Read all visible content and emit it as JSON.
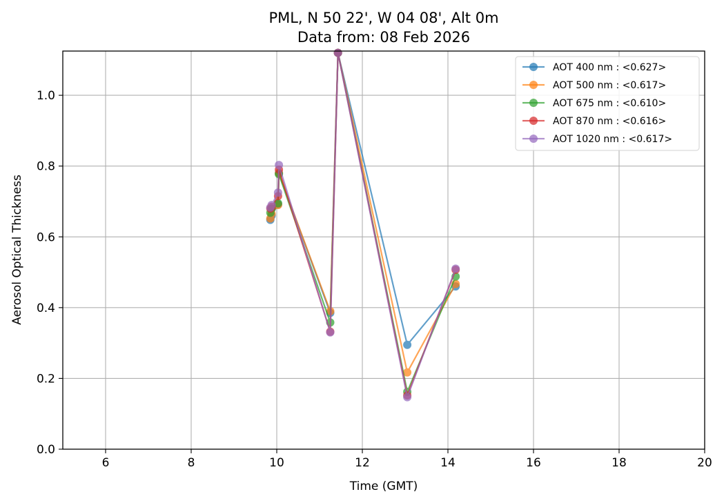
{
  "chart_data": {
    "type": "line",
    "title": "PML, N 50 22', W 04 08', Alt 0m",
    "subtitle": "Data from: 08 Feb 2026",
    "xlabel": "Time (GMT)",
    "ylabel": "Aerosol Optical Thickness",
    "xlim": [
      5,
      20
    ],
    "ylim": [
      0,
      1.125
    ],
    "x_ticks": [
      6,
      8,
      10,
      12,
      14,
      16,
      18,
      20
    ],
    "y_ticks": [
      0.0,
      0.2,
      0.4,
      0.6,
      0.8,
      1.0
    ],
    "x_tick_labels": [
      "6",
      "8",
      "10",
      "12",
      "14",
      "16",
      "18",
      "20"
    ],
    "y_tick_labels": [
      "0.0",
      "0.2",
      "0.4",
      "0.6",
      "0.8",
      "1.0"
    ],
    "grid": true,
    "legend_position": "top-right",
    "series": [
      {
        "name": "AOT 400 nm : <0.627>",
        "color": "#1f77b4",
        "x": [
          9.85,
          9.88,
          10.03,
          10.05,
          11.25,
          11.43,
          13.05,
          14.18
        ],
        "y": [
          0.648,
          0.66,
          0.692,
          0.78,
          0.385,
          1.12,
          0.295,
          0.46
        ]
      },
      {
        "name": "AOT 500 nm : <0.617>",
        "color": "#ff7f0e",
        "x": [
          9.85,
          9.88,
          10.03,
          10.05,
          11.25,
          11.43,
          13.05,
          14.18
        ],
        "y": [
          0.652,
          0.665,
          0.69,
          0.78,
          0.39,
          1.12,
          0.217,
          0.467
        ]
      },
      {
        "name": "AOT 675 nm : <0.610>",
        "color": "#2ca02c",
        "x": [
          9.85,
          9.88,
          10.03,
          10.05,
          11.25,
          11.43,
          13.05,
          14.18
        ],
        "y": [
          0.668,
          0.68,
          0.695,
          0.777,
          0.358,
          1.12,
          0.162,
          0.488
        ]
      },
      {
        "name": "AOT 870 nm : <0.616>",
        "color": "#d62728",
        "x": [
          9.85,
          9.88,
          10.03,
          10.05,
          11.25,
          11.43,
          13.05,
          14.18
        ],
        "y": [
          0.68,
          0.685,
          0.715,
          0.79,
          0.332,
          1.12,
          0.152,
          0.507
        ]
      },
      {
        "name": "AOT 1020 nm : <0.617>",
        "color": "#9467bd",
        "x": [
          9.85,
          9.88,
          10.03,
          10.05,
          11.25,
          11.43,
          13.05,
          14.18
        ],
        "y": [
          0.683,
          0.69,
          0.725,
          0.803,
          0.33,
          1.12,
          0.147,
          0.51
        ]
      }
    ]
  }
}
